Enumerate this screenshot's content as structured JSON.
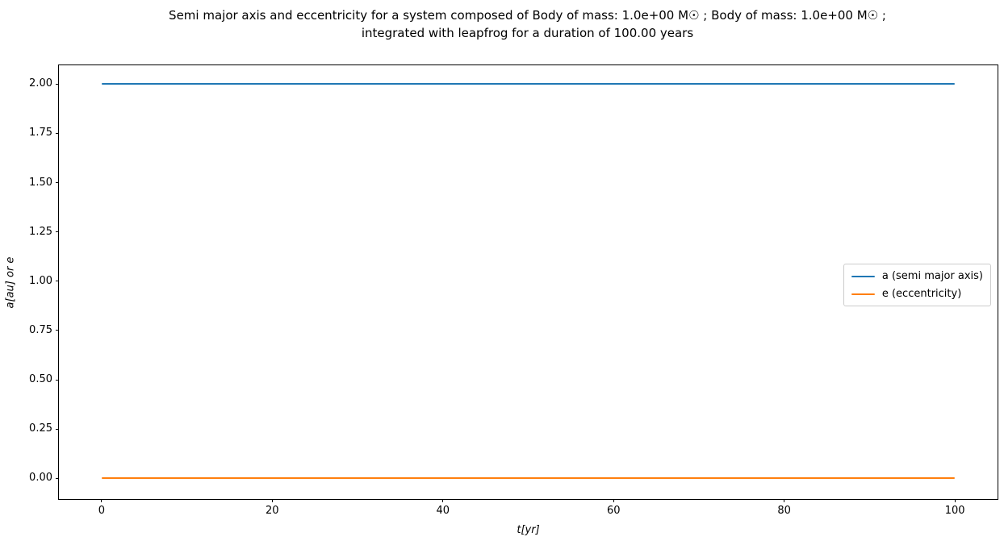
{
  "figure": {
    "title_line1": "Semi major axis and eccentricity for a system composed of Body of mass: 1.0e+00 M☉ ; Body of mass: 1.0e+00 M☉ ;",
    "title_line2": "integrated with leapfrog for a duration of 100.00 years"
  },
  "chart_data": {
    "type": "line",
    "title": "Semi major axis and eccentricity for a system composed of Body of mass: 1.0e+00 M☉ ; Body of mass: 1.0e+00 M☉ ; integrated with leapfrog for a duration of 100.00 years",
    "xlabel": "t[yr]",
    "ylabel": "a[au] or e",
    "xlim": [
      -5,
      105
    ],
    "ylim": [
      -0.105,
      2.095
    ],
    "xticks": [
      0,
      20,
      40,
      60,
      80,
      100
    ],
    "xtick_labels": [
      "0",
      "20",
      "40",
      "60",
      "80",
      "100"
    ],
    "yticks": [
      0.0,
      0.25,
      0.5,
      0.75,
      1.0,
      1.25,
      1.5,
      1.75,
      2.0
    ],
    "ytick_labels": [
      "0.00",
      "0.25",
      "0.50",
      "0.75",
      "1.00",
      "1.25",
      "1.50",
      "1.75",
      "2.00"
    ],
    "grid": false,
    "legend_position": "center right",
    "series": [
      {
        "name": "a (semi major axis)",
        "color": "#1f77b4",
        "x": [
          0,
          100
        ],
        "y": [
          2.0,
          2.0
        ]
      },
      {
        "name": "e (eccentricity)",
        "color": "#ff7f0e",
        "x": [
          0,
          100
        ],
        "y": [
          0.0,
          0.0
        ]
      }
    ]
  },
  "colors": {
    "background": "#ffffff",
    "spine": "#000000",
    "legend_border": "#cccccc",
    "series_a": "#1f77b4",
    "series_e": "#ff7f0e"
  }
}
